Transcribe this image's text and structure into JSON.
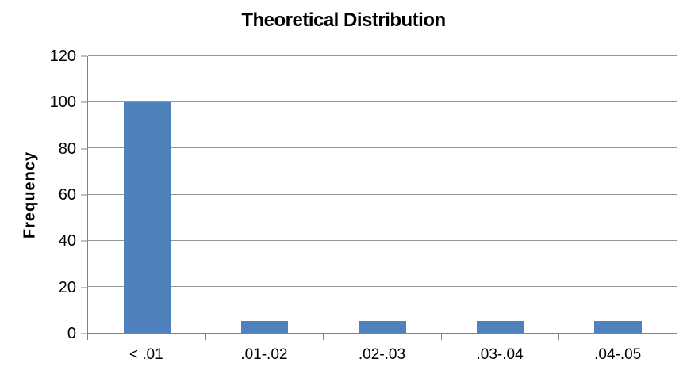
{
  "chart_data": {
    "type": "bar",
    "title": "Theoretical Distribution",
    "xlabel": "",
    "ylabel": "Frequency",
    "categories": [
      "< .01",
      ".01-.02",
      ".02-.03",
      ".03-.04",
      ".04-.05"
    ],
    "values": [
      100,
      5,
      5,
      5,
      5
    ],
    "ylim": [
      0,
      120
    ],
    "yticks": [
      0,
      20,
      40,
      60,
      80,
      100,
      120
    ],
    "grid": "horizontal-on",
    "legend": "none",
    "bar_color": "#4f81bd",
    "gridline_color": "#969696",
    "axis_color": "#808080",
    "text_color": "#000000",
    "background_color": "#ffffff"
  }
}
